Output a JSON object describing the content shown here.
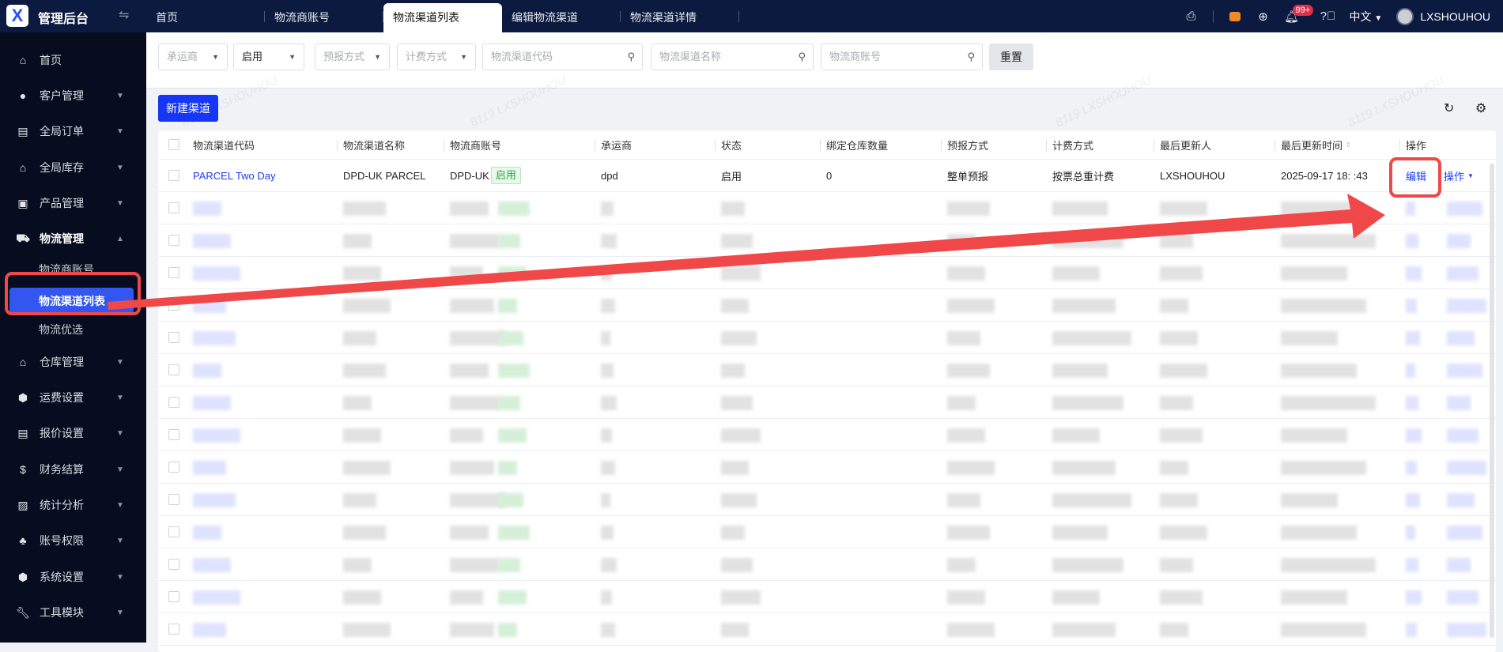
{
  "header": {
    "brand": "管理后台",
    "logo_text": "X",
    "tabs": [
      {
        "label": "首页"
      },
      {
        "label": "物流商账号"
      },
      {
        "label": "物流渠道列表",
        "active": true
      },
      {
        "label": "编辑物流渠道"
      },
      {
        "label": "物流渠道详情"
      }
    ],
    "notification_badge": "99+",
    "language": "中文",
    "username": "LXSHOUHOU"
  },
  "sidebar": {
    "items": [
      {
        "label": "首页",
        "icon": "home-icon"
      },
      {
        "label": "客户管理",
        "icon": "user-icon"
      },
      {
        "label": "全局订单",
        "icon": "clipboard-icon"
      },
      {
        "label": "全局库存",
        "icon": "warehouse-icon"
      },
      {
        "label": "产品管理",
        "icon": "box-icon"
      },
      {
        "label": "物流管理",
        "icon": "truck-icon",
        "expanded": true,
        "children": [
          {
            "label": "物流商账号"
          },
          {
            "label": "物流渠道列表",
            "active": true
          },
          {
            "label": "物流优选"
          }
        ]
      },
      {
        "label": "仓库管理",
        "icon": "house-icon"
      },
      {
        "label": "运费设置",
        "icon": "freight-icon"
      },
      {
        "label": "报价设置",
        "icon": "document-icon"
      },
      {
        "label": "财务结算",
        "icon": "dollar-icon"
      },
      {
        "label": "统计分析",
        "icon": "chart-icon"
      },
      {
        "label": "账号权限",
        "icon": "org-icon"
      },
      {
        "label": "系统设置",
        "icon": "hexagon-gear-icon"
      },
      {
        "label": "工具模块",
        "icon": "wrench-icon"
      }
    ]
  },
  "filters": {
    "carrier_placeholder": "承运商",
    "status_value": "启用",
    "forecast_placeholder": "预报方式",
    "billing_placeholder": "计费方式",
    "code_placeholder": "物流渠道代码",
    "name_placeholder": "物流渠道名称",
    "account_placeholder": "物流商账号",
    "reset_label": "重置"
  },
  "toolbar": {
    "new_channel_label": "新建渠道"
  },
  "watermark": "8119 LXSHOUHOU",
  "table": {
    "columns": [
      "物流渠道代码",
      "物流渠道名称",
      "物流商账号",
      "承运商",
      "状态",
      "绑定仓库数量",
      "预报方式",
      "计费方式",
      "最后更新人",
      "最后更新时间",
      "操作"
    ],
    "rows": [
      {
        "code": "PARCEL Two Day",
        "name": "DPD-UK PARCEL",
        "account": "DPD-UK",
        "account_tag": "启用",
        "carrier": "dpd",
        "status": "启用",
        "warehouses": "0",
        "forecast": "整单预报",
        "billing": "按票总重计费",
        "updater": "LXSHOUHOU",
        "updated_at": "2025-09-17 18:  :43",
        "edit": "编辑",
        "more": "操作"
      }
    ]
  },
  "annotation_color": "#f04848"
}
